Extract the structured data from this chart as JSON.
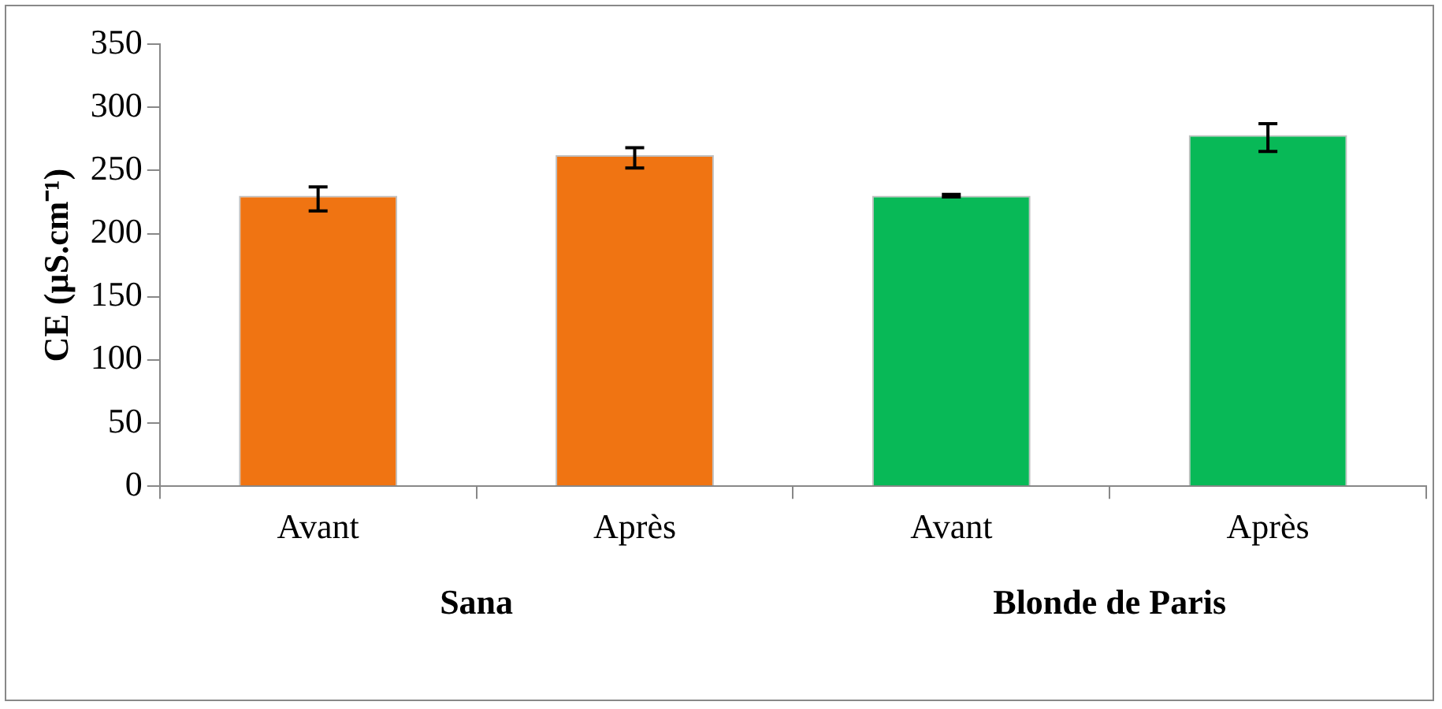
{
  "chart_data": {
    "type": "bar",
    "ylabel": "CE (µS.cm⁻¹)",
    "categories": [
      "Avant",
      "Après",
      "Avant",
      "Après"
    ],
    "values": [
      230,
      262,
      230,
      278
    ],
    "colors": [
      "#f07412",
      "#f07412",
      "#08b957",
      "#08b957"
    ],
    "errors": [
      [
        218,
        237
      ],
      [
        252,
        268
      ],
      [
        229,
        231
      ],
      [
        265,
        287
      ]
    ],
    "ylim": [
      0,
      350
    ],
    "yticks": [
      0,
      50,
      100,
      150,
      200,
      250,
      300,
      350
    ],
    "annotations": [
      "Sana",
      "Blonde de Paris"
    ],
    "grid": false,
    "legend": false
  }
}
